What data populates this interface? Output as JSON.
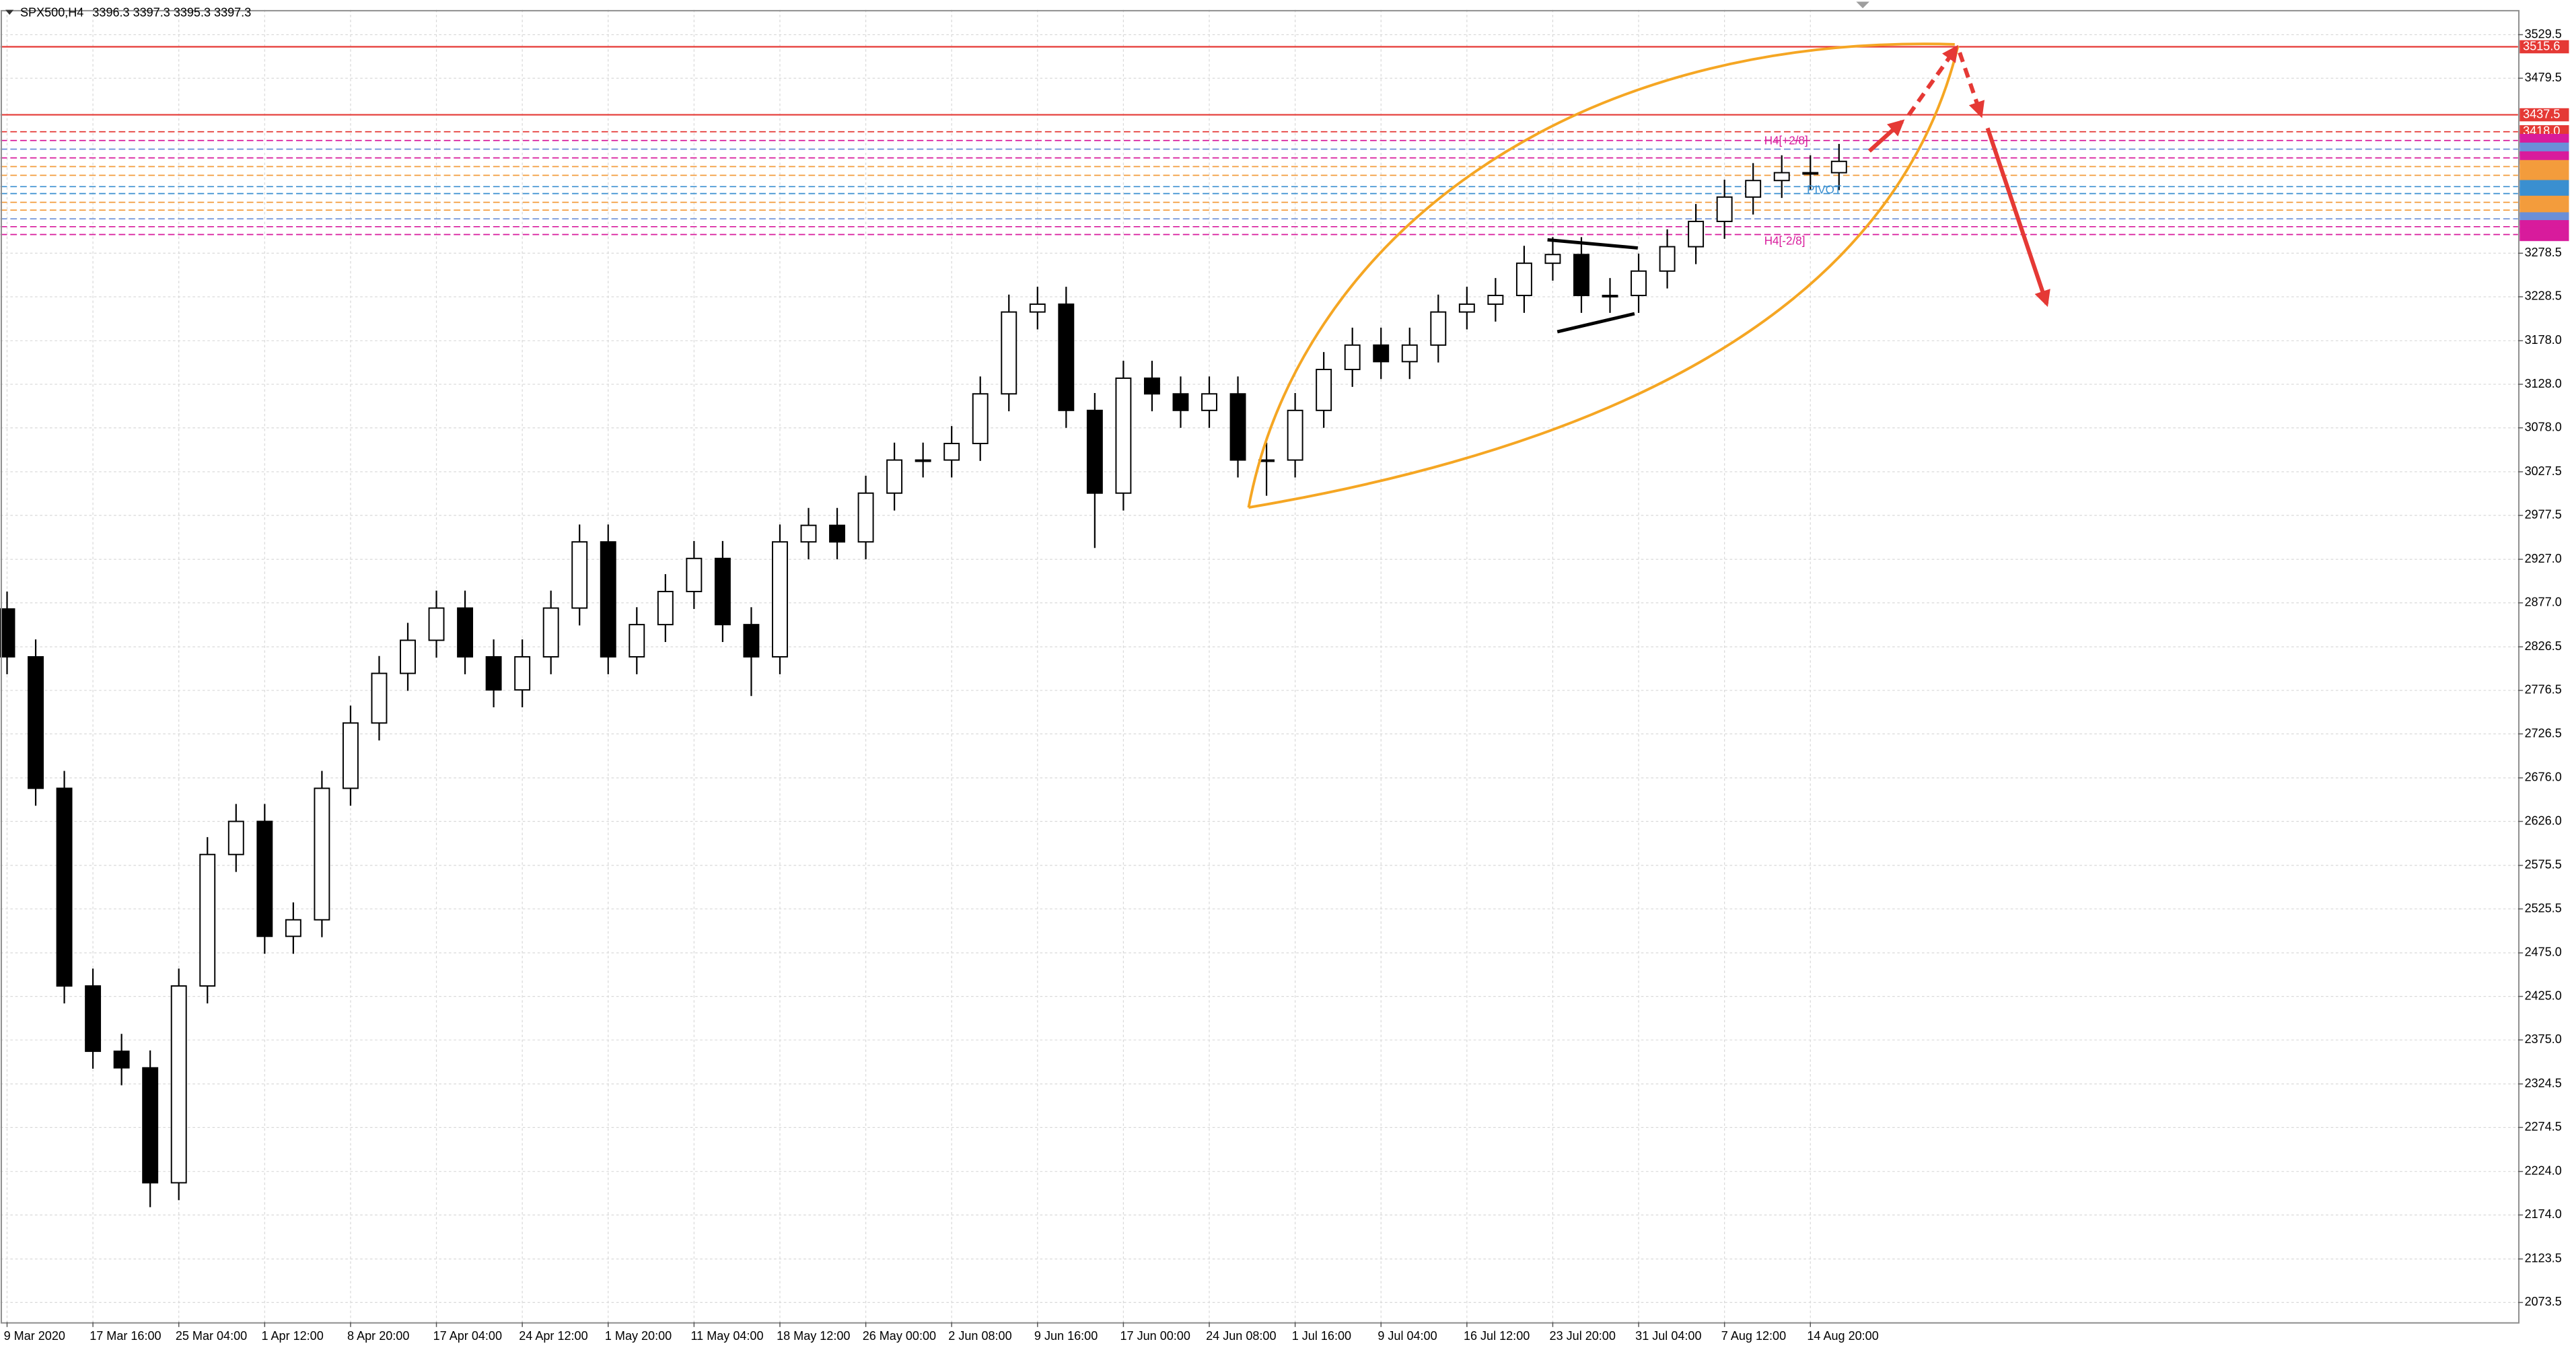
{
  "chart_data": {
    "type": "candlestick",
    "title": "SPX500,H4",
    "subtitle": "3396.3 3397.3 3395.3 3397.3",
    "categories": [
      "9 Mar 2020",
      null,
      null,
      "17 Mar 16:00",
      null,
      null,
      "25 Mar 04:00",
      null,
      null,
      "1 Apr 12:00",
      null,
      null,
      "8 Apr 20:00",
      null,
      null,
      "17 Apr 04:00",
      null,
      null,
      "24 Apr 12:00",
      null,
      null,
      "1 May 20:00",
      null,
      null,
      "11 May 04:00",
      null,
      null,
      "18 May 12:00",
      null,
      null,
      "26 May 00:00",
      null,
      null,
      "2 Jun 08:00",
      null,
      null,
      "9 Jun 16:00",
      null,
      null,
      "17 Jun 00:00",
      null,
      null,
      "24 Jun 08:00",
      null,
      null,
      "1 Jul 16:00",
      null,
      null,
      "9 Jul 04:00",
      null,
      null,
      "16 Jul 12:00",
      null,
      null,
      "23 Jul 20:00",
      null,
      null,
      "31 Jul 04:00",
      null,
      null,
      "7 Aug 12:00",
      null,
      null,
      "14 Aug 20:00",
      null
    ],
    "open": [
      2870,
      2815,
      2664,
      2437,
      2362,
      2343,
      2211,
      2437,
      2588,
      2626,
      2494,
      2513,
      2664,
      2739,
      2796,
      2834,
      2871,
      2815,
      2777,
      2815,
      2871,
      2947,
      2815,
      2852,
      2890,
      2928,
      2852,
      2815,
      2947,
      2966,
      2947,
      3003,
      3041,
      3041,
      3060,
      3117,
      3211,
      3220,
      3098,
      3003,
      3135,
      3117,
      3098,
      3117,
      3041,
      3041,
      3098,
      3145,
      3173,
      3154,
      3173,
      3211,
      3220,
      3230,
      3267,
      3277,
      3230,
      3230,
      3258,
      3286,
      3315,
      3343,
      3362,
      3371,
      3371
    ],
    "high": [
      2890,
      2835,
      2684,
      2457,
      2382,
      2363,
      2457,
      2608,
      2646,
      2646,
      2533,
      2684,
      2759,
      2816,
      2854,
      2891,
      2891,
      2835,
      2835,
      2891,
      2967,
      2967,
      2872,
      2910,
      2948,
      2948,
      2872,
      2967,
      2986,
      2986,
      3023,
      3061,
      3061,
      3080,
      3137,
      3231,
      3240,
      3240,
      3118,
      3155,
      3155,
      3137,
      3137,
      3137,
      3061,
      3118,
      3165,
      3193,
      3193,
      3193,
      3231,
      3240,
      3250,
      3287,
      3297,
      3297,
      3250,
      3278,
      3306,
      3335,
      3363,
      3382,
      3391,
      3391,
      3404
    ],
    "low": [
      2795,
      2644,
      2417,
      2342,
      2323,
      2183,
      2191,
      2417,
      2568,
      2474,
      2474,
      2493,
      2644,
      2719,
      2776,
      2814,
      2795,
      2757,
      2757,
      2795,
      2851,
      2795,
      2795,
      2832,
      2870,
      2832,
      2770,
      2795,
      2927,
      2927,
      2927,
      2983,
      3021,
      3021,
      3040,
      3097,
      3191,
      3078,
      2940,
      2983,
      3097,
      3078,
      3078,
      3021,
      3000,
      3021,
      3078,
      3125,
      3134,
      3134,
      3153,
      3191,
      3200,
      3210,
      3247,
      3210,
      3210,
      3210,
      3238,
      3266,
      3295,
      3323,
      3342,
      3351,
      3351
    ],
    "close": [
      2815,
      2664,
      2437,
      2362,
      2343,
      2211,
      2437,
      2588,
      2626,
      2494,
      2513,
      2664,
      2739,
      2796,
      2834,
      2871,
      2815,
      2777,
      2815,
      2871,
      2947,
      2815,
      2852,
      2890,
      2928,
      2852,
      2815,
      2947,
      2966,
      2947,
      3003,
      3041,
      3041,
      3060,
      3117,
      3211,
      3220,
      3098,
      3003,
      3135,
      3117,
      3098,
      3117,
      3041,
      3041,
      3098,
      3145,
      3173,
      3154,
      3173,
      3211,
      3220,
      3230,
      3267,
      3277,
      3230,
      3230,
      3258,
      3286,
      3315,
      3343,
      3362,
      3371,
      3371,
      3384
    ],
    "up_color": "#ffffff",
    "down_color": "#000000",
    "ylim": [
      2051,
      3558
    ],
    "yticks": [
      3529.5,
      3479.5,
      3278.5,
      3228.5,
      {
        "value": 3178,
        "label": "3178.0"
      },
      {
        "value": 3128,
        "label": "3128.0"
      },
      {
        "value": 3078,
        "label": "3078.0"
      },
      3027.5,
      2977.5,
      {
        "value": 2927,
        "label": "2927.0"
      },
      {
        "value": 2877,
        "label": "2877.0"
      },
      2826.5,
      2776.5,
      2726.5,
      {
        "value": 2676,
        "label": "2676.0"
      },
      {
        "value": 2626,
        "label": "2626.0"
      },
      2575.5,
      2525.5,
      {
        "value": 2475,
        "label": "2475.0"
      },
      {
        "value": 2425,
        "label": "2425.0"
      },
      {
        "value": 2375,
        "label": "2375.0"
      },
      2324.5,
      2274.5,
      {
        "value": 2224,
        "label": "2224.0"
      },
      {
        "value": 2174,
        "label": "2174.0"
      },
      2123.5,
      2073.5
    ],
    "grid": true,
    "levels": [
      {
        "value": 3515.6,
        "color": "#e53935",
        "style": "solid"
      },
      {
        "value": 3437.5,
        "color": "#e53935",
        "style": "solid"
      },
      {
        "value": 3418,
        "label": "3418.0",
        "color": "#e53935",
        "style": "dashed"
      },
      {
        "value": 3408,
        "color": "#d81b9c",
        "style": "dashed"
      },
      {
        "value": 3398,
        "color": "#6a8fd8",
        "style": "dashed"
      },
      {
        "value": 3388,
        "color": "#d81b9c",
        "style": "dashed"
      },
      {
        "value": 3378,
        "color": "#f39c3c",
        "style": "dashed"
      },
      {
        "value": 3368,
        "color": "#f39c3c",
        "style": "dashed"
      },
      {
        "value": 3355,
        "color": "#3a8fd0",
        "style": "dashed"
      },
      {
        "value": 3347,
        "color": "#3a8fd0",
        "style": "dashed"
      },
      {
        "value": 3337,
        "color": "#f39c3c",
        "style": "dashed"
      },
      {
        "value": 3328,
        "color": "#f39c3c",
        "style": "dashed"
      },
      {
        "value": 3318,
        "color": "#6a8fd8",
        "style": "dashed"
      },
      {
        "value": 3309,
        "color": "#d81b9c",
        "style": "dashed"
      },
      {
        "value": 3300,
        "color": "#d81b9c",
        "style": "dashed"
      }
    ],
    "annotations": [
      "H4[+2/8]",
      "PIVOT",
      "H4[-2/8]"
    ]
  }
}
